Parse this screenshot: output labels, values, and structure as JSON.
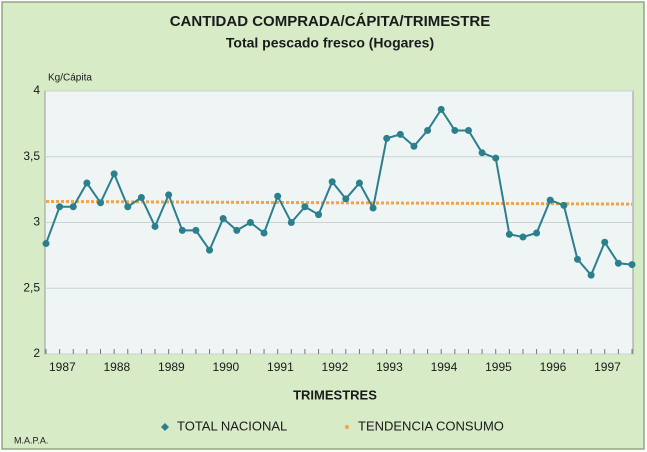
{
  "chart_data": {
    "type": "line",
    "title": "CANTIDAD COMPRADA/CÁPITA/TRIMESTRE",
    "subtitle": "Total pescado fresco (Hogares)",
    "y_label": "Kg/Cápita",
    "x_label": "TRIMESTRES",
    "source": "M.A.P.A.",
    "categories": [
      "1987",
      null,
      null,
      null,
      "1988",
      null,
      null,
      null,
      "1989",
      null,
      null,
      null,
      "1990",
      null,
      null,
      null,
      "1991",
      null,
      null,
      null,
      "1992",
      null,
      null,
      null,
      "1993",
      null,
      null,
      null,
      "1994",
      null,
      null,
      null,
      "1995",
      null,
      null,
      null,
      "1996",
      null,
      null,
      null,
      "1997",
      null,
      null,
      null
    ],
    "series": [
      {
        "name": "TOTAL NACIONAL",
        "color": "#2c7f8c",
        "values": [
          2.84,
          3.12,
          3.12,
          3.3,
          3.15,
          3.37,
          3.12,
          3.19,
          2.97,
          3.21,
          2.94,
          2.94,
          2.79,
          3.03,
          2.94,
          3.0,
          2.92,
          3.2,
          3.0,
          3.12,
          3.06,
          3.31,
          3.18,
          3.3,
          3.11,
          3.64,
          3.67,
          3.58,
          3.7,
          3.86,
          3.7,
          3.7,
          3.53,
          3.49,
          2.91,
          2.89,
          2.92,
          3.17,
          3.13,
          2.72,
          2.6,
          2.85,
          2.69,
          2.68
        ]
      }
    ],
    "trend": {
      "name": "TENDENCIA CONSUMO",
      "color": "#f2a444",
      "start": 3.16,
      "end": 3.14
    },
    "ylim": [
      2,
      4
    ],
    "yticks": [
      2,
      {
        "value": 2.5,
        "label": "2,5"
      },
      3,
      {
        "value": 3.5,
        "label": "3,5"
      },
      4
    ],
    "grid": true,
    "legend": "bottom"
  }
}
